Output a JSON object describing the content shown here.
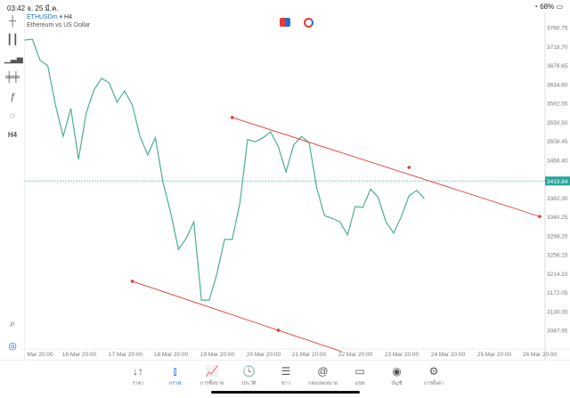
{
  "status": {
    "time": "03:42",
    "date": "จ. 25 มี.ค.",
    "battery": "68%"
  },
  "header": {
    "symbol": "ETHUSDm",
    "timeframe": "H4",
    "description": "Ethereum vs US Dollar"
  },
  "left_toolbar": [
    {
      "icon": "crosshair-icon"
    },
    {
      "icon": "candlestick-icon"
    },
    {
      "icon": "bar-chart-icon"
    },
    {
      "icon": "indicators-icon"
    },
    {
      "icon": "function-icon",
      "glyph": "ƒ"
    },
    {
      "icon": "shapes-icon"
    },
    {
      "icon": "timeframe-label",
      "glyph": "H4"
    }
  ],
  "colors": {
    "line": "#4caf8e",
    "trend": "#e53935",
    "price_tag": "#26a69a",
    "accent": "#1e6fd9"
  },
  "chart_data": {
    "type": "line",
    "y_ticks": [
      "3760.75",
      "3718.70",
      "3676.65",
      "3634.60",
      "3592.55",
      "3550.50",
      "3508.45",
      "3466.40",
      "3382.30",
      "3340.25",
      "3298.20",
      "3256.15",
      "3214.10",
      "3172.05",
      "3130.00",
      "3087.95"
    ],
    "ylim": [
      3087.95,
      3760.75
    ],
    "x_ticks": [
      "Mar 20:00",
      "16 Mar 20:00",
      "17 Mar 20:00",
      "18 Mar 20:00",
      "19 Mar 20:00",
      "20 Mar 20:00",
      "21 Mar 20:00",
      "22 Mar 20:00",
      "23 Mar 20:00",
      "24 Mar 20:00",
      "25 Mar 20:00",
      "26 Mar 20:00"
    ],
    "current_price": "3419.84",
    "x": [
      "15 Mar 12:00",
      "15 Mar 16:00",
      "15 Mar 20:00",
      "16 Mar 00:00",
      "16 Mar 04:00",
      "16 Mar 08:00",
      "16 Mar 12:00",
      "16 Mar 16:00",
      "16 Mar 20:00",
      "17 Mar 00:00",
      "17 Mar 04:00",
      "17 Mar 08:00",
      "17 Mar 12:00",
      "17 Mar 16:00",
      "17 Mar 20:00",
      "18 Mar 00:00",
      "18 Mar 04:00",
      "18 Mar 08:00",
      "18 Mar 12:00",
      "18 Mar 16:00",
      "18 Mar 20:00",
      "19 Mar 00:00",
      "19 Mar 04:00",
      "19 Mar 08:00",
      "19 Mar 12:00",
      "19 Mar 16:00",
      "19 Mar 20:00",
      "20 Mar 00:00",
      "20 Mar 04:00",
      "20 Mar 08:00",
      "20 Mar 12:00",
      "20 Mar 16:00",
      "20 Mar 20:00",
      "21 Mar 00:00",
      "21 Mar 04:00",
      "21 Mar 08:00",
      "21 Mar 12:00",
      "21 Mar 16:00",
      "21 Mar 20:00",
      "22 Mar 00:00",
      "22 Mar 04:00",
      "22 Mar 08:00",
      "22 Mar 12:00",
      "22 Mar 16:00",
      "22 Mar 20:00",
      "23 Mar 00:00",
      "23 Mar 04:00",
      "23 Mar 08:00",
      "23 Mar 12:00",
      "23 Mar 16:00",
      "23 Mar 20:00",
      "24 Mar 00:00",
      "24 Mar 04:00"
    ],
    "y": [
      3733,
      3735,
      3688,
      3676,
      3589,
      3519,
      3581,
      3468,
      3571,
      3622,
      3648,
      3638,
      3595,
      3620,
      3589,
      3519,
      3478,
      3516,
      3416,
      3349,
      3268,
      3292,
      3329,
      3155,
      3155,
      3213,
      3290,
      3290,
      3371,
      3512,
      3507,
      3516,
      3529,
      3496,
      3440,
      3500,
      3519,
      3505,
      3404,
      3343,
      3337,
      3329,
      3300,
      3363,
      3361,
      3402,
      3383,
      3329,
      3304,
      3341,
      3387,
      3399,
      3381
    ],
    "trendlines": [
      {
        "points": [
          [
            "20 Mar 00:00",
            3561
          ],
          [
            "23 Mar 20:00",
            3450
          ],
          [
            "26 Mar 16:00",
            3341
          ]
        ]
      },
      {
        "points": [
          [
            "17 Mar 20:00",
            3197
          ],
          [
            "21 Mar 00:00",
            3088
          ]
        ],
        "extended": true
      }
    ]
  },
  "bottom_nav": [
    {
      "label": "ราคา",
      "icon": "quotes-icon",
      "glyph": "↓↑"
    },
    {
      "label": "กราฟ",
      "icon": "chart-icon",
      "glyph": "⫾",
      "active": true
    },
    {
      "label": "การซื้อขาย",
      "icon": "trade-icon",
      "glyph": "📈"
    },
    {
      "label": "ประวัติ",
      "icon": "history-icon",
      "glyph": "🕓"
    },
    {
      "label": "ข่าว",
      "icon": "news-icon",
      "glyph": "☰"
    },
    {
      "label": "กล่องจดหมาย",
      "icon": "mailbox-icon",
      "glyph": "@"
    },
    {
      "label": "แชท",
      "icon": "chat-icon",
      "glyph": "▭"
    },
    {
      "label": "บัญชี",
      "icon": "account-icon",
      "glyph": "◉"
    },
    {
      "label": "การตั้งค่า",
      "icon": "settings-icon",
      "glyph": "⚙"
    }
  ]
}
